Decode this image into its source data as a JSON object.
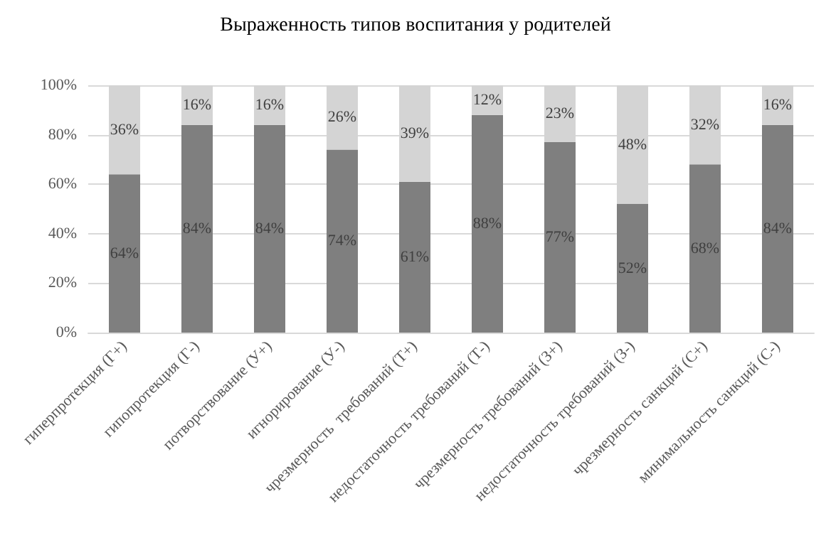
{
  "chart_data": {
    "type": "bar",
    "title": "Выраженность типов воспитания у родителей",
    "categories": [
      "гиперпротекция (Г+)",
      "гипопротекция (Г-)",
      "потворствование (У+)",
      "игнорирование (У-)",
      "чрезмерность  требований (Т+)",
      "недостаточность требований (Т-)",
      "чрезмерность требований (З+)",
      "недостаточность требований (З-)",
      "чрезмерность санкций (С+)",
      "минимальность санкций (С-)"
    ],
    "stacked": true,
    "series": [
      {
        "color": "#7f7f7f",
        "values": [
          64,
          84,
          84,
          74,
          61,
          88,
          77,
          52,
          68,
          84
        ],
        "value_labels": [
          "64%",
          "84%",
          "84%",
          "74%",
          "61%",
          "88%",
          "77%",
          "52%",
          "68%",
          "84%"
        ]
      },
      {
        "color": "#d4d4d4",
        "values": [
          36,
          16,
          16,
          26,
          39,
          12,
          23,
          48,
          32,
          16
        ],
        "value_labels": [
          "36%",
          "16%",
          "16%",
          "26%",
          "39%",
          "12%",
          "23%",
          "48%",
          "32%",
          "16%"
        ]
      }
    ],
    "ylim": [
      0,
      100
    ],
    "yticks": [
      {
        "value": 0,
        "label": "0%"
      },
      {
        "value": 20,
        "label": "20%"
      },
      {
        "value": 40,
        "label": "40%"
      },
      {
        "value": 60,
        "label": "60%"
      },
      {
        "value": 80,
        "label": "80%"
      },
      {
        "value": 100,
        "label": "100%"
      }
    ],
    "grid": "y"
  }
}
